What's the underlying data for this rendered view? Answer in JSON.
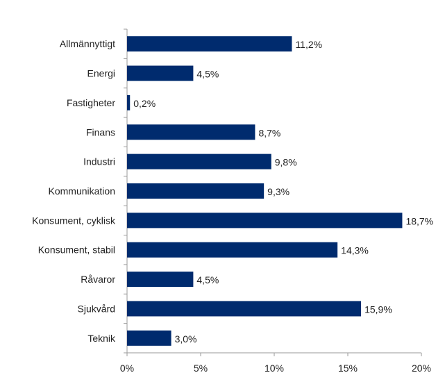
{
  "chart_data": {
    "type": "bar",
    "orientation": "horizontal",
    "categories": [
      "Allmännyttigt",
      "Energi",
      "Fastigheter",
      "Finans",
      "Industri",
      "Kommunikation",
      "Konsument, cyklisk",
      "Konsument, stabil",
      "Råvaror",
      "Sjukvård",
      "Teknik"
    ],
    "values": [
      11.2,
      4.5,
      0.2,
      8.7,
      9.8,
      9.3,
      18.7,
      14.3,
      4.5,
      15.9,
      3.0
    ],
    "value_labels": [
      "11,2%",
      "4,5%",
      "0,2%",
      "8,7%",
      "9,8%",
      "9,3%",
      "18,7%",
      "14,3%",
      "4,5%",
      "15,9%",
      "3,0%"
    ],
    "xlim": [
      0,
      20
    ],
    "xticks": [
      0,
      5,
      10,
      15,
      20
    ],
    "xtick_labels": [
      "0%",
      "5%",
      "10%",
      "15%",
      "20%"
    ],
    "grid": false,
    "legend": "none",
    "bar_color": "#002b6e"
  }
}
